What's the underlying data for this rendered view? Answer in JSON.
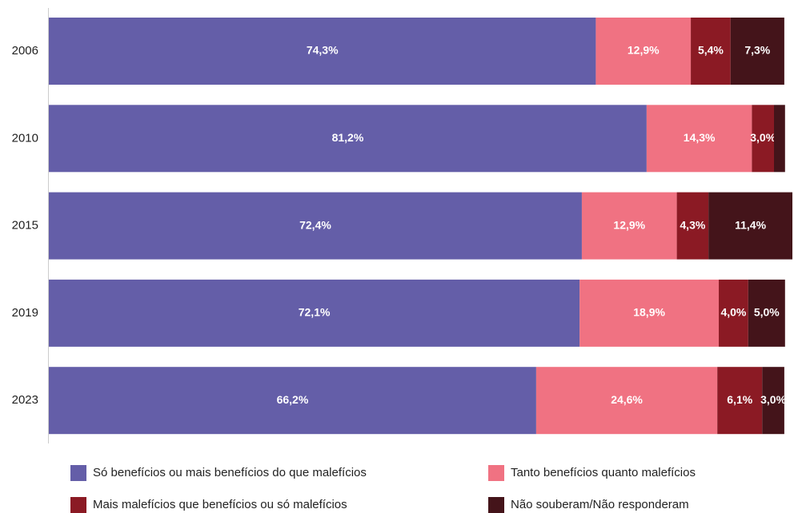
{
  "chart_data": {
    "type": "stacked-bar-horizontal",
    "categories": [
      "2006",
      "2010",
      "2015",
      "2019",
      "2023"
    ],
    "series": [
      {
        "name": "Só benefícios ou mais benefícios do que malefícios",
        "color": "#645ea8",
        "values": [
          74.3,
          81.2,
          72.4,
          72.1,
          66.2
        ],
        "value_labels": [
          "74,3%",
          "81,2%",
          "72,4%",
          "72,1%",
          "66,2%"
        ]
      },
      {
        "name": "Tanto benefícios quanto malefícios",
        "color": "#f07282",
        "values": [
          12.9,
          14.3,
          12.9,
          18.9,
          24.6
        ],
        "value_labels": [
          "12,9%",
          "14,3%",
          "12,9%",
          "18,9%",
          "24,6%"
        ]
      },
      {
        "name": "Mais malefícios que benefícios ou só malefícios",
        "color": "#8b1a24",
        "values": [
          5.4,
          3.0,
          4.3,
          4.0,
          6.1
        ],
        "value_labels": [
          "5,4%",
          "3,0%",
          "4,3%",
          "4,0%",
          "6,1%"
        ]
      },
      {
        "name": "Não souberam/Não responderam",
        "color": "#44141a",
        "values": [
          7.3,
          1.5,
          11.4,
          5.0,
          3.0
        ],
        "value_labels": [
          "7,3%",
          null,
          "11,4%",
          "5,0%",
          "3,0%"
        ]
      }
    ]
  }
}
